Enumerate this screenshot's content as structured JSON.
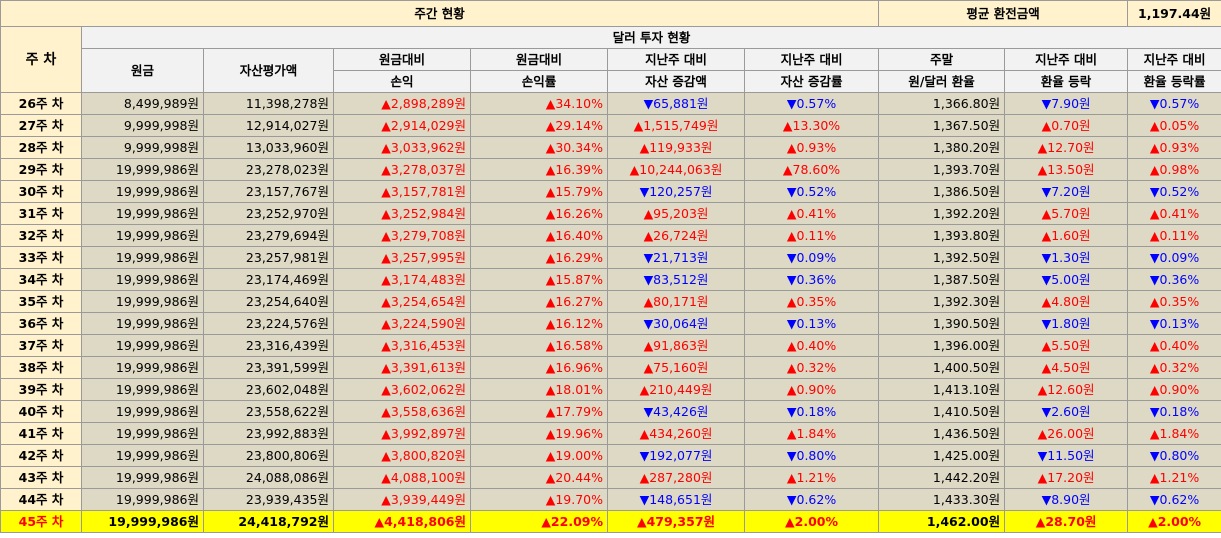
{
  "header": {
    "weekly_status": "주간 현황",
    "avg_exchange_label": "평균 환전금액",
    "avg_exchange_value": "1,197.44원",
    "week_col": "주 차",
    "dollar_invest": "달러 투자 현황"
  },
  "columns": [
    [
      "원금"
    ],
    [
      "자산평가액"
    ],
    [
      "원금대비",
      "손익"
    ],
    [
      "원금대비",
      "손익률"
    ],
    [
      "지난주 대비",
      "자산 증감액"
    ],
    [
      "지난주 대비",
      "자산 증감률"
    ],
    [
      "주말",
      "원/달러 환율"
    ],
    [
      "지난주 대비",
      "환율 등락"
    ],
    [
      "지난주 대비",
      "환율 등락률"
    ]
  ],
  "rows": [
    {
      "week": "26주 차",
      "cells": [
        "8,499,989원",
        "11,398,278원",
        "▲2,898,289원",
        "▲34.10%",
        "▼65,881원",
        "▼0.57%",
        "1,366.80원",
        "▼7.90원",
        "▼0.57%"
      ]
    },
    {
      "week": "27주 차",
      "cells": [
        "9,999,998원",
        "12,914,027원",
        "▲2,914,029원",
        "▲29.14%",
        "▲1,515,749원",
        "▲13.30%",
        "1,367.50원",
        "▲0.70원",
        "▲0.05%"
      ]
    },
    {
      "week": "28주 차",
      "cells": [
        "9,999,998원",
        "13,033,960원",
        "▲3,033,962원",
        "▲30.34%",
        "▲119,933원",
        "▲0.93%",
        "1,380.20원",
        "▲12.70원",
        "▲0.93%"
      ]
    },
    {
      "week": "29주 차",
      "cells": [
        "19,999,986원",
        "23,278,023원",
        "▲3,278,037원",
        "▲16.39%",
        "▲10,244,063원",
        "▲78.60%",
        "1,393.70원",
        "▲13.50원",
        "▲0.98%"
      ]
    },
    {
      "week": "30주 차",
      "cells": [
        "19,999,986원",
        "23,157,767원",
        "▲3,157,781원",
        "▲15.79%",
        "▼120,257원",
        "▼0.52%",
        "1,386.50원",
        "▼7.20원",
        "▼0.52%"
      ]
    },
    {
      "week": "31주 차",
      "cells": [
        "19,999,986원",
        "23,252,970원",
        "▲3,252,984원",
        "▲16.26%",
        "▲95,203원",
        "▲0.41%",
        "1,392.20원",
        "▲5.70원",
        "▲0.41%"
      ]
    },
    {
      "week": "32주 차",
      "cells": [
        "19,999,986원",
        "23,279,694원",
        "▲3,279,708원",
        "▲16.40%",
        "▲26,724원",
        "▲0.11%",
        "1,393.80원",
        "▲1.60원",
        "▲0.11%"
      ]
    },
    {
      "week": "33주 차",
      "cells": [
        "19,999,986원",
        "23,257,981원",
        "▲3,257,995원",
        "▲16.29%",
        "▼21,713원",
        "▼0.09%",
        "1,392.50원",
        "▼1.30원",
        "▼0.09%"
      ]
    },
    {
      "week": "34주 차",
      "cells": [
        "19,999,986원",
        "23,174,469원",
        "▲3,174,483원",
        "▲15.87%",
        "▼83,512원",
        "▼0.36%",
        "1,387.50원",
        "▼5.00원",
        "▼0.36%"
      ]
    },
    {
      "week": "35주 차",
      "cells": [
        "19,999,986원",
        "23,254,640원",
        "▲3,254,654원",
        "▲16.27%",
        "▲80,171원",
        "▲0.35%",
        "1,392.30원",
        "▲4.80원",
        "▲0.35%"
      ]
    },
    {
      "week": "36주 차",
      "cells": [
        "19,999,986원",
        "23,224,576원",
        "▲3,224,590원",
        "▲16.12%",
        "▼30,064원",
        "▼0.13%",
        "1,390.50원",
        "▼1.80원",
        "▼0.13%"
      ]
    },
    {
      "week": "37주 차",
      "cells": [
        "19,999,986원",
        "23,316,439원",
        "▲3,316,453원",
        "▲16.58%",
        "▲91,863원",
        "▲0.40%",
        "1,396.00원",
        "▲5.50원",
        "▲0.40%"
      ]
    },
    {
      "week": "38주 차",
      "cells": [
        "19,999,986원",
        "23,391,599원",
        "▲3,391,613원",
        "▲16.96%",
        "▲75,160원",
        "▲0.32%",
        "1,400.50원",
        "▲4.50원",
        "▲0.32%"
      ]
    },
    {
      "week": "39주 차",
      "cells": [
        "19,999,986원",
        "23,602,048원",
        "▲3,602,062원",
        "▲18.01%",
        "▲210,449원",
        "▲0.90%",
        "1,413.10원",
        "▲12.60원",
        "▲0.90%"
      ]
    },
    {
      "week": "40주 차",
      "cells": [
        "19,999,986원",
        "23,558,622원",
        "▲3,558,636원",
        "▲17.79%",
        "▼43,426원",
        "▼0.18%",
        "1,410.50원",
        "▼2.60원",
        "▼0.18%"
      ]
    },
    {
      "week": "41주 차",
      "cells": [
        "19,999,986원",
        "23,992,883원",
        "▲3,992,897원",
        "▲19.96%",
        "▲434,260원",
        "▲1.84%",
        "1,436.50원",
        "▲26.00원",
        "▲1.84%"
      ]
    },
    {
      "week": "42주 차",
      "cells": [
        "19,999,986원",
        "23,800,806원",
        "▲3,800,820원",
        "▲19.00%",
        "▼192,077원",
        "▼0.80%",
        "1,425.00원",
        "▼11.50원",
        "▼0.80%"
      ]
    },
    {
      "week": "43주 차",
      "cells": [
        "19,999,986원",
        "24,088,086원",
        "▲4,088,100원",
        "▲20.44%",
        "▲287,280원",
        "▲1.21%",
        "1,442.20원",
        "▲17.20원",
        "▲1.21%"
      ]
    },
    {
      "week": "44주 차",
      "cells": [
        "19,999,986원",
        "23,939,435원",
        "▲3,939,449원",
        "▲19.70%",
        "▼148,651원",
        "▼0.62%",
        "1,433.30원",
        "▼8.90원",
        "▼0.62%"
      ]
    },
    {
      "week": "45주 차",
      "cells": [
        "19,999,986원",
        "24,418,792원",
        "▲4,418,806원",
        "▲22.09%",
        "▲479,357원",
        "▲2.00%",
        "1,462.00원",
        "▲28.70원",
        "▲2.00%"
      ],
      "highlight": true
    }
  ],
  "colors": {
    "up": "#ff0000",
    "down": "#0000ff",
    "header_bg": "#fff2cc",
    "subheader_bg": "#f2f2f2",
    "body_bg": "#ddd9c4",
    "highlight_bg": "#ffff00"
  }
}
